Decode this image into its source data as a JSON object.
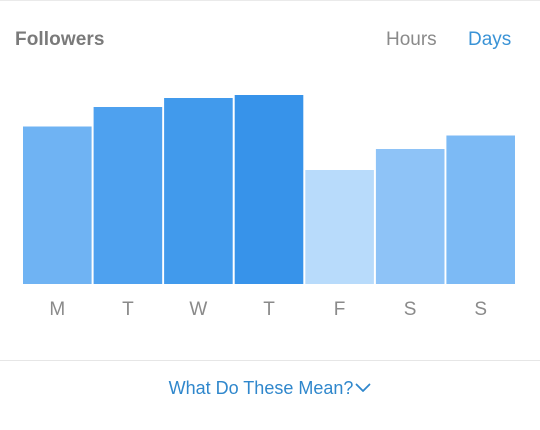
{
  "header": {
    "title": "Followers",
    "tabs": [
      {
        "label": "Hours",
        "active": false
      },
      {
        "label": "Days",
        "active": true
      }
    ]
  },
  "colors": {
    "accent": "#3a93d6",
    "link": "#2f87cc",
    "inactive_text": "#8a8a8a",
    "bar_shades": [
      "#6fb3f3",
      "#4ea1ef",
      "#419aec",
      "#3793ea",
      "#b8dbfb",
      "#8ec3f7",
      "#7cbaf5"
    ]
  },
  "chart_data": {
    "type": "bar",
    "categories": [
      "M",
      "T",
      "W",
      "T",
      "F",
      "S",
      "S"
    ],
    "values": [
      105,
      118,
      124,
      126,
      76,
      90,
      99
    ],
    "ylim": [
      0,
      140
    ],
    "grid": false,
    "xlabel": "",
    "ylabel": "",
    "title": ""
  },
  "footer": {
    "help_label": "What Do These Mean?",
    "help_icon": "chevron-down-icon"
  }
}
